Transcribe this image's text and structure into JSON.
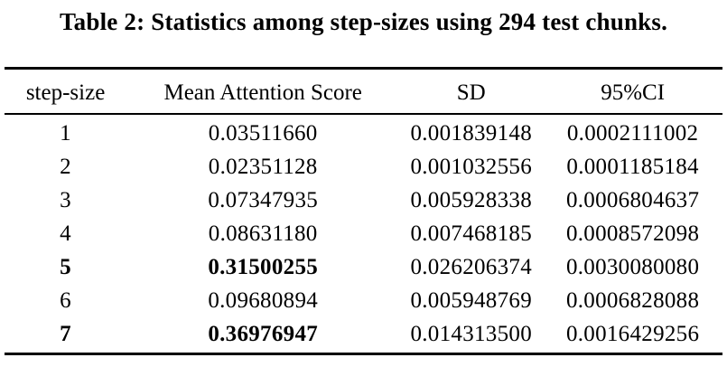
{
  "caption": "Table 2: Statistics among step-sizes using 294 test chunks.",
  "colors": {
    "text": "#000000",
    "background": "#ffffff",
    "rule": "#000000"
  },
  "table": {
    "columns": [
      "step-size",
      "Mean Attention Score",
      "SD",
      "95%CI"
    ],
    "rows": [
      {
        "step_size": "1",
        "mean_attention_score": "0.03511660",
        "sd": "0.001839148",
        "ci95": "0.0002111002",
        "emphasized": false
      },
      {
        "step_size": "2",
        "mean_attention_score": "0.02351128",
        "sd": "0.001032556",
        "ci95": "0.0001185184",
        "emphasized": false
      },
      {
        "step_size": "3",
        "mean_attention_score": "0.07347935",
        "sd": "0.005928338",
        "ci95": "0.0006804637",
        "emphasized": false
      },
      {
        "step_size": "4",
        "mean_attention_score": "0.08631180",
        "sd": "0.007468185",
        "ci95": "0.0008572098",
        "emphasized": false
      },
      {
        "step_size": "5",
        "mean_attention_score": "0.31500255",
        "sd": "0.026206374",
        "ci95": "0.0030080080",
        "emphasized": true
      },
      {
        "step_size": "6",
        "mean_attention_score": "0.09680894",
        "sd": "0.005948769",
        "ci95": "0.0006828088",
        "emphasized": false
      },
      {
        "step_size": "7",
        "mean_attention_score": "0.36976947",
        "sd": "0.014313500",
        "ci95": "0.0016429256",
        "emphasized": true
      }
    ]
  }
}
